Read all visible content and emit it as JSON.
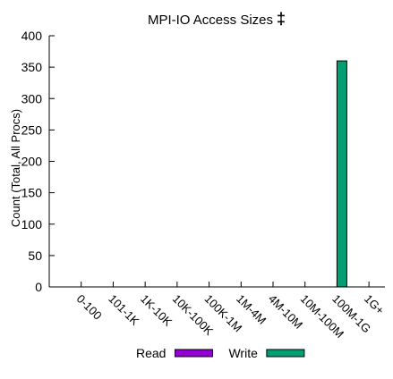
{
  "chart_data": {
    "type": "bar",
    "title": "MPI-IO Access Sizes",
    "title_symbol": "‡",
    "ylabel": "Count (Total, All Procs)",
    "xlabel": "",
    "categories": [
      "0-100",
      "101-1K",
      "1K-10K",
      "10K-100K",
      "100K-1M",
      "1M-4M",
      "4M-10M",
      "10M-100M",
      "100M-1G",
      "1G+"
    ],
    "ylim": [
      0,
      400
    ],
    "yticks": [
      0,
      50,
      100,
      150,
      200,
      250,
      300,
      350,
      400
    ],
    "grid": false,
    "legend_position": "bottom",
    "series": [
      {
        "name": "Read",
        "color": "#9400d3",
        "values": [
          0,
          0,
          0,
          0,
          0,
          0,
          0,
          0,
          0,
          0
        ]
      },
      {
        "name": "Write",
        "color": "#009e73",
        "values": [
          0,
          0,
          0,
          0,
          0,
          0,
          0,
          0,
          360,
          0
        ]
      }
    ]
  }
}
